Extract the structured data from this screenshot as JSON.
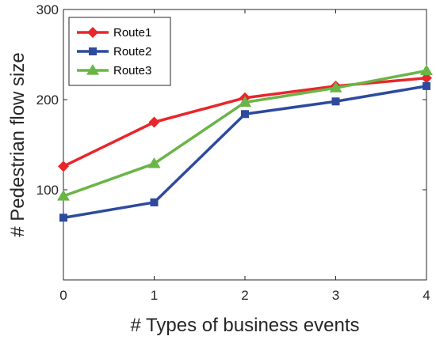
{
  "chart_data": {
    "type": "line",
    "title": "",
    "xlabel": "# Types of business events",
    "ylabel": "# Pedestrian flow size",
    "x": [
      0,
      1,
      2,
      3,
      4
    ],
    "xlim": [
      0,
      4
    ],
    "ylim": [
      0,
      300
    ],
    "xticks": [
      "0",
      "1",
      "2",
      "3",
      "4"
    ],
    "yticks": [
      100,
      200,
      300
    ],
    "ytick_labels": [
      "100",
      "200",
      "300"
    ],
    "grid": false,
    "legend_position": "top-left",
    "series": [
      {
        "name": "Route1",
        "color": "#e8262a",
        "marker": "diamond",
        "values": [
          126,
          175,
          202,
          215,
          224
        ]
      },
      {
        "name": "Route2",
        "color": "#2e4a9e",
        "marker": "square",
        "values": [
          69,
          86,
          184,
          198,
          215
        ]
      },
      {
        "name": "Route3",
        "color": "#6ab547",
        "marker": "triangle",
        "values": [
          93,
          129,
          197,
          213,
          232
        ]
      }
    ]
  }
}
